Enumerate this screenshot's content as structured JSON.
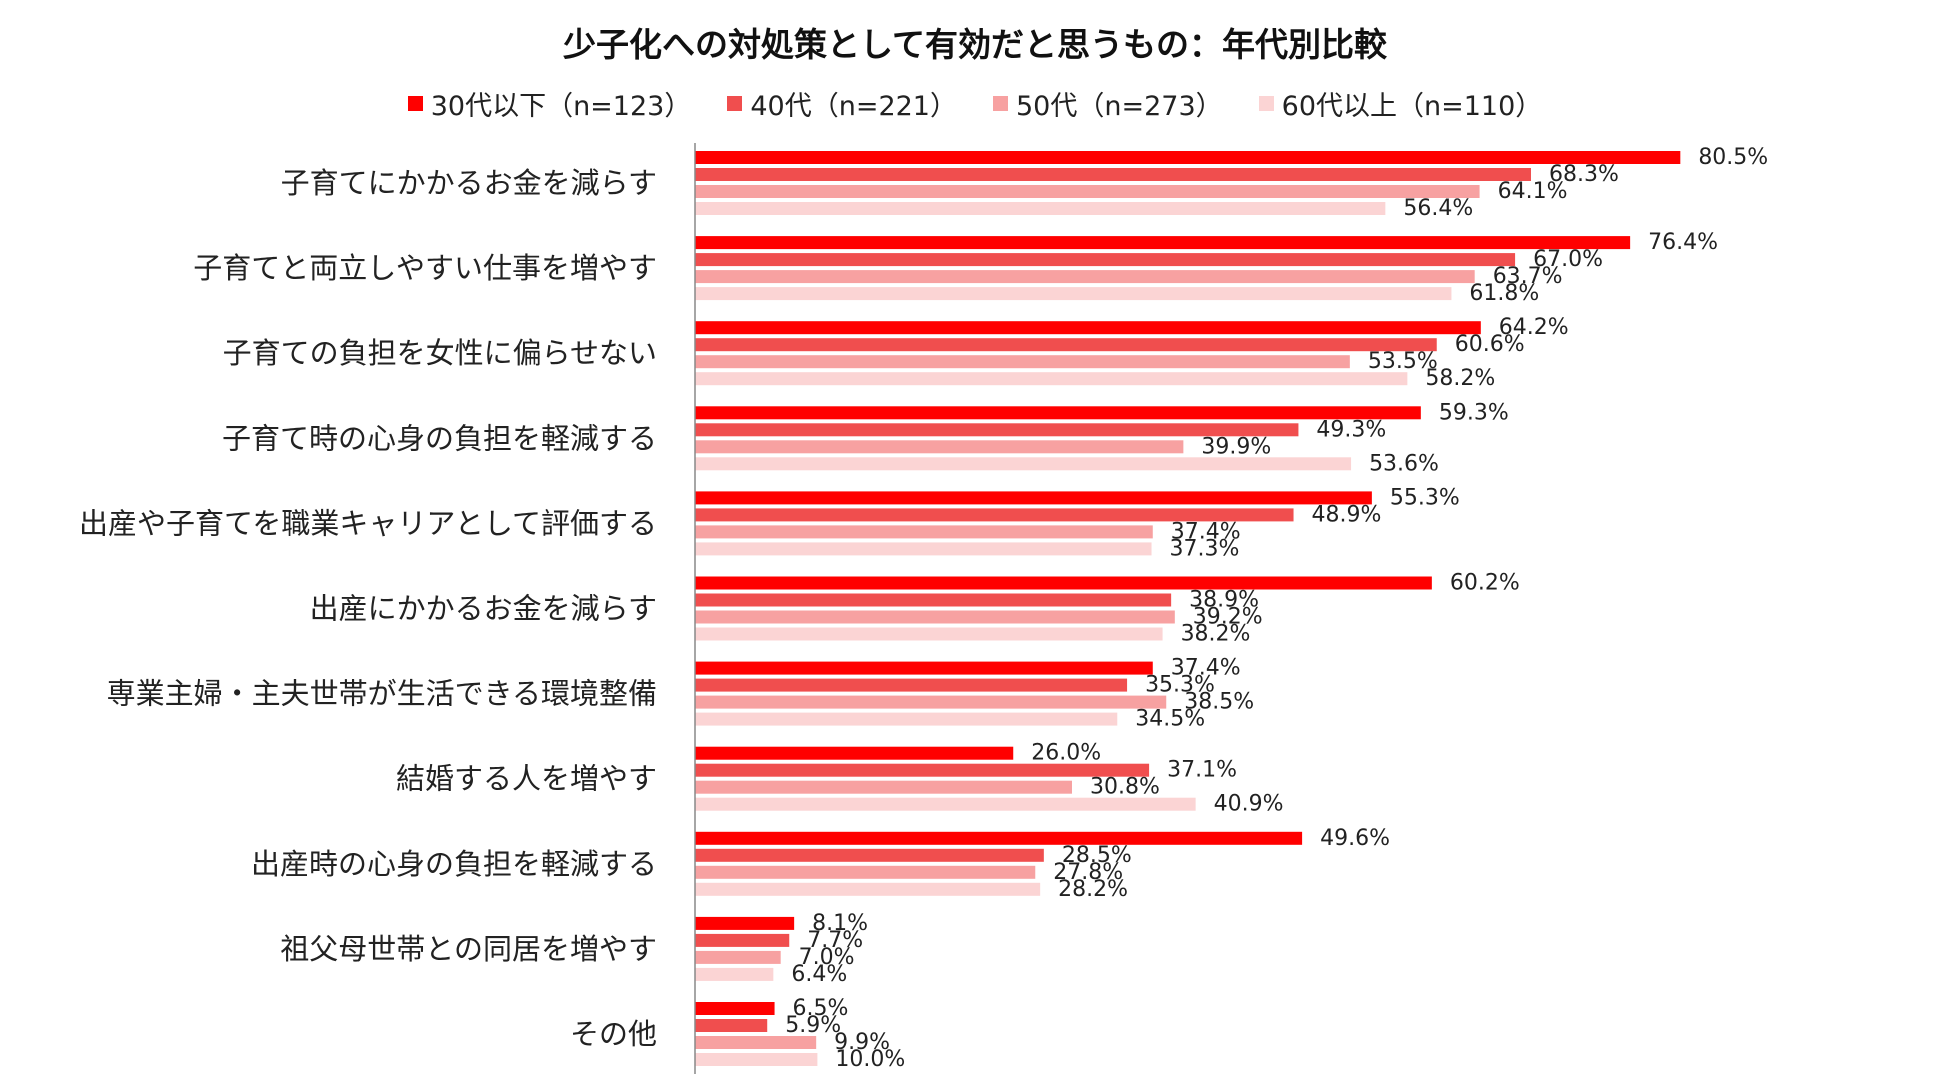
{
  "chart_data": {
    "type": "bar",
    "orientation": "horizontal",
    "title": "少子化への対処策として有効だと思うもの：年代別比較",
    "xlabel": "",
    "ylabel": "",
    "xlim": [
      0,
      100
    ],
    "grid": false,
    "legend_position": "top",
    "value_suffix": "%",
    "categories": [
      "子育てにかかるお金を減らす",
      "子育てと両立しやすい仕事を増やす",
      "子育ての負担を女性に偏らせない",
      "子育て時の心身の負担を軽減する",
      "出産や子育てを職業キャリアとして評価する",
      "出産にかかるお金を減らす",
      "専業主婦・主夫世帯が生活できる環境整備",
      "結婚する人を増やす",
      "出産時の心身の負担を軽減する",
      "祖父母世帯との同居を増やす",
      "その他"
    ],
    "series": [
      {
        "name": "30代以下（n=123）",
        "color": "#ff0000",
        "values": [
          80.5,
          76.4,
          64.2,
          59.3,
          55.3,
          60.2,
          37.4,
          26.0,
          49.6,
          8.1,
          6.5
        ]
      },
      {
        "name": "40代（n=221）",
        "color": "#f04e4e",
        "values": [
          68.3,
          67.0,
          60.6,
          49.3,
          48.9,
          38.9,
          35.3,
          37.1,
          28.5,
          7.7,
          5.9
        ]
      },
      {
        "name": "50代（n=273）",
        "color": "#f7a1a1",
        "values": [
          64.1,
          63.7,
          53.5,
          39.9,
          37.4,
          39.2,
          38.5,
          30.8,
          27.8,
          7.0,
          9.9
        ]
      },
      {
        "name": "60代以上（n=110）",
        "color": "#fbd4d4",
        "values": [
          56.4,
          61.8,
          58.2,
          53.6,
          37.3,
          38.2,
          34.5,
          40.9,
          28.2,
          6.4,
          10.0
        ]
      }
    ]
  }
}
